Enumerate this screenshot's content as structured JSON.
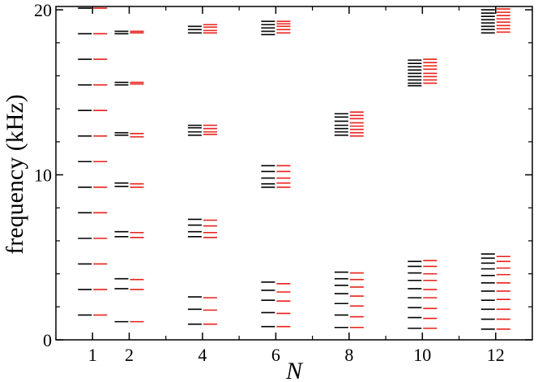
{
  "chart_data": {
    "type": "scatter",
    "marker": "horizontal-dash",
    "xlabel": "N",
    "ylabel": "frequency (kHz)",
    "xlim": [
      0,
      13
    ],
    "ylim": [
      0,
      20.2
    ],
    "x_ticks": [
      1,
      2,
      4,
      6,
      8,
      10,
      12
    ],
    "y_ticks": [
      0,
      10,
      20
    ],
    "y_minor_step": 2,
    "x_minor_step": 1,
    "grid": false,
    "legend": "none",
    "series": [
      {
        "color": "#000000",
        "points": [
          {
            "N": 1,
            "f": [
              1.5,
              3.05,
              4.6,
              6.15,
              7.7,
              9.25,
              10.8,
              12.35,
              13.9,
              15.45,
              17.0,
              18.55,
              20.1
            ]
          },
          {
            "N": 2,
            "f": [
              1.1,
              3.1,
              3.7,
              6.25,
              6.55,
              9.3,
              9.5,
              12.4,
              12.55,
              15.45,
              15.6,
              18.55,
              18.7
            ]
          },
          {
            "N": 4,
            "f": [
              0.95,
              1.85,
              2.6,
              6.25,
              6.55,
              6.95,
              7.3,
              12.4,
              12.6,
              12.85,
              13.0,
              18.6,
              18.8,
              19.0
            ]
          },
          {
            "N": 6,
            "f": [
              0.8,
              1.65,
              2.4,
              3.0,
              3.5,
              9.25,
              9.45,
              9.8,
              10.2,
              10.55,
              18.5,
              18.7,
              18.9,
              19.1,
              19.3
            ]
          },
          {
            "N": 8,
            "f": [
              0.75,
              1.5,
              2.2,
              2.8,
              3.3,
              3.7,
              4.1,
              12.4,
              12.6,
              12.8,
              13.0,
              13.25,
              13.5,
              13.7
            ]
          },
          {
            "N": 10,
            "f": [
              0.7,
              1.35,
              1.95,
              2.55,
              3.1,
              3.6,
              4.05,
              4.45,
              4.75,
              15.4,
              15.55,
              15.75,
              15.95,
              16.15,
              16.35,
              16.55,
              16.75,
              16.95
            ]
          },
          {
            "N": 12,
            "f": [
              0.65,
              1.25,
              1.85,
              2.4,
              2.95,
              3.45,
              3.9,
              4.3,
              4.65,
              4.95,
              5.2,
              18.6,
              18.8,
              19.0,
              19.2,
              19.4,
              19.6,
              19.8,
              20.0
            ]
          }
        ]
      },
      {
        "color": "#e8201a",
        "points": [
          {
            "N": 1,
            "f": [
              1.5,
              3.05,
              4.6,
              6.15,
              7.7,
              9.25,
              10.8,
              12.35,
              13.9,
              15.45,
              17.0,
              18.55,
              20.1
            ]
          },
          {
            "N": 2,
            "f": [
              1.1,
              3.05,
              3.65,
              6.2,
              6.5,
              9.25,
              9.45,
              12.3,
              12.5,
              15.5,
              15.6,
              18.6,
              18.7
            ]
          },
          {
            "N": 4,
            "f": [
              0.95,
              1.8,
              2.55,
              6.2,
              6.5,
              6.9,
              7.25,
              12.45,
              12.6,
              12.8,
              13.0,
              18.6,
              18.75,
              18.95,
              19.1
            ]
          },
          {
            "N": 6,
            "f": [
              0.8,
              1.6,
              2.35,
              2.9,
              3.4,
              9.25,
              9.5,
              9.8,
              10.2,
              10.55,
              18.6,
              18.8,
              19.0,
              19.15,
              19.3
            ]
          },
          {
            "N": 8,
            "f": [
              0.75,
              1.4,
              2.05,
              2.65,
              3.2,
              3.65,
              4.05,
              12.35,
              12.55,
              12.75,
              12.95,
              13.15,
              13.4,
              13.6,
              13.8
            ]
          },
          {
            "N": 10,
            "f": [
              0.7,
              1.3,
              1.9,
              2.55,
              3.05,
              3.6,
              4.0,
              4.45,
              4.8,
              15.55,
              15.75,
              15.95,
              16.15,
              16.4,
              16.6,
              16.8,
              17.0
            ]
          },
          {
            "N": 12,
            "f": [
              0.65,
              1.25,
              1.85,
              2.45,
              2.95,
              3.45,
              3.95,
              4.35,
              4.75,
              5.05,
              18.65,
              18.85,
              19.05,
              19.25,
              19.45,
              19.65,
              19.85,
              20.05
            ]
          }
        ]
      }
    ]
  }
}
